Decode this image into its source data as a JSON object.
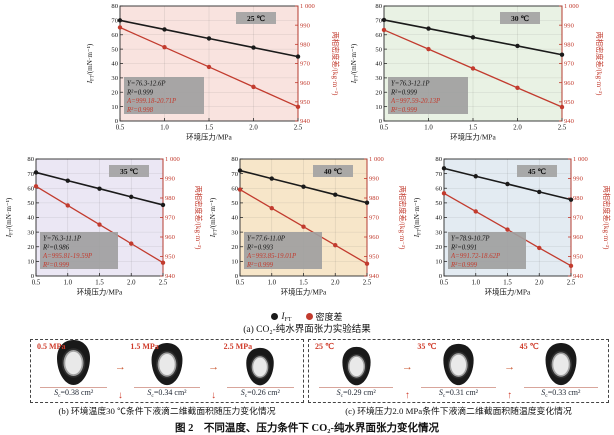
{
  "figure": {
    "caption_a": "(a) CO₂-纯水界面张力实验结果",
    "caption_b": "(b) 环境温度30 ℃条件下液滴二维截面积随压力变化情况",
    "caption_c": "(c) 环境压力2.0 MPa条件下液滴二维截面积随温度变化情况",
    "title": "图 2　不同温度、压力条件下 CO₂-纯水界面张力变化情况"
  },
  "legend": {
    "ift_pre": "I",
    "ift_sub": "FT",
    "density_label": "密度差",
    "ift_color": "#1a1a1a",
    "density_color": "#c23b2e"
  },
  "axes_common": {
    "xlabel": "环境压力/MPa",
    "ylabel_left": {
      "pre": "I",
      "sub": "FT",
      "post": "/(mN·m⁻¹)"
    },
    "ylabel_right": "两相密度差/(kg·m⁻³)",
    "xlim": [
      0.5,
      2.5
    ],
    "ylim_left": [
      0,
      80
    ],
    "ylim_right": [
      940,
      1000
    ],
    "xticks": [
      "0.5",
      "1.0",
      "1.5",
      "2.0",
      "2.5"
    ],
    "yticks_left": [
      "0",
      "10",
      "20",
      "30",
      "40",
      "50",
      "60",
      "70",
      "80"
    ],
    "yticks_right": [
      "940",
      "950",
      "960",
      "970",
      "980",
      "990",
      "1 000"
    ],
    "grid": true,
    "left_axis_color": "#1a1a1a",
    "right_axis_color": "#c23b2e"
  },
  "chart_data": [
    {
      "type": "line",
      "temperature_label": "25 ℃",
      "bg_color": "#f9e3df",
      "x": [
        0.5,
        1.0,
        1.5,
        2.0,
        2.5
      ],
      "series": [
        {
          "name": "IFT",
          "axis": "left",
          "color": "#1a1a1a",
          "values": [
            70.0,
            63.7,
            57.4,
            51.1,
            44.8
          ]
        },
        {
          "name": "密度差",
          "axis": "right",
          "color": "#c23b2e",
          "values": [
            988.8,
            978.5,
            968.2,
            957.8,
            947.4
          ]
        }
      ],
      "fit_black": [
        "Y=76.3-12.6P",
        "R²=0.999"
      ],
      "fit_red": [
        "A=999.18-20.71P",
        "R²=0.998"
      ]
    },
    {
      "type": "line",
      "temperature_label": "30 ℃",
      "bg_color": "#e9f2e4",
      "x": [
        0.5,
        1.0,
        1.5,
        2.0,
        2.5
      ],
      "series": [
        {
          "name": "IFT",
          "axis": "left",
          "color": "#1a1a1a",
          "values": [
            70.3,
            64.3,
            58.2,
            52.2,
            46.1
          ]
        },
        {
          "name": "密度差",
          "axis": "right",
          "color": "#c23b2e",
          "values": [
            987.5,
            977.5,
            967.4,
            957.3,
            947.3
          ]
        }
      ],
      "fit_black": [
        "Y=76.3-12.1P",
        "R²=0.999"
      ],
      "fit_red": [
        "A=997.59-20.13P",
        "R²=0.999"
      ]
    },
    {
      "type": "line",
      "temperature_label": "35 ℃",
      "bg_color": "#ebe7f4",
      "x": [
        0.5,
        1.0,
        1.5,
        2.0,
        2.5
      ],
      "series": [
        {
          "name": "IFT",
          "axis": "left",
          "color": "#1a1a1a",
          "values": [
            70.8,
            65.2,
            59.7,
            54.1,
            48.6
          ]
        },
        {
          "name": "密度差",
          "axis": "right",
          "color": "#c23b2e",
          "values": [
            986.0,
            976.2,
            966.4,
            956.6,
            946.8
          ]
        }
      ],
      "fit_black": [
        "Y=76.3-11.1P",
        "R²=0.986"
      ],
      "fit_red": [
        "A=995.81-19.59P",
        "R²=0.999"
      ]
    },
    {
      "type": "line",
      "temperature_label": "40 ℃",
      "bg_color": "#f7e6c9",
      "x": [
        0.5,
        1.0,
        1.5,
        2.0,
        2.5
      ],
      "series": [
        {
          "name": "IFT",
          "axis": "left",
          "color": "#1a1a1a",
          "values": [
            72.1,
            66.6,
            61.1,
            55.6,
            50.1
          ]
        },
        {
          "name": "密度差",
          "axis": "right",
          "color": "#c23b2e",
          "values": [
            984.3,
            974.8,
            965.3,
            955.8,
            946.3
          ]
        }
      ],
      "fit_black": [
        "Y=77.6-11.0P",
        "R²=0.993"
      ],
      "fit_red": [
        "A=993.85-19.01P",
        "R²=0.999"
      ]
    },
    {
      "type": "line",
      "temperature_label": "45 ℃",
      "bg_color": "#e3ebf2",
      "x": [
        0.5,
        1.0,
        1.5,
        2.0,
        2.5
      ],
      "series": [
        {
          "name": "IFT",
          "axis": "left",
          "color": "#1a1a1a",
          "values": [
            73.6,
            68.2,
            62.9,
            57.5,
            52.2
          ]
        },
        {
          "name": "密度差",
          "axis": "right",
          "color": "#c23b2e",
          "values": [
            982.4,
            973.1,
            963.8,
            954.4,
            945.2
          ]
        }
      ],
      "fit_black": [
        "Y=78.9-10.7P",
        "R²=0.991"
      ],
      "fit_red": [
        "A=991.72-18.62P",
        "R²=0.999"
      ]
    }
  ],
  "panel_b": {
    "s_symbol": "S",
    "s_sub": "c",
    "flow_arrow": "→",
    "trend_arrow": "↓",
    "items": [
      {
        "condition": "0.5 MPa",
        "area": 0.38,
        "area_text": "=0.38 cm²"
      },
      {
        "condition": "1.5 MPa",
        "area": 0.34,
        "area_text": "=0.34 cm²"
      },
      {
        "condition": "2.5 MPa",
        "area": 0.26,
        "area_text": "=0.26 cm²"
      }
    ]
  },
  "panel_c": {
    "s_symbol": "S",
    "s_sub": "c",
    "flow_arrow": "→",
    "trend_arrow": "↑",
    "items": [
      {
        "condition": "25 ℃",
        "area": 0.29,
        "area_text": "=0.29 cm²"
      },
      {
        "condition": "35 ℃",
        "area": 0.31,
        "area_text": "=0.31 cm²"
      },
      {
        "condition": "45 ℃",
        "area": 0.33,
        "area_text": "=0.33 cm²"
      }
    ]
  }
}
